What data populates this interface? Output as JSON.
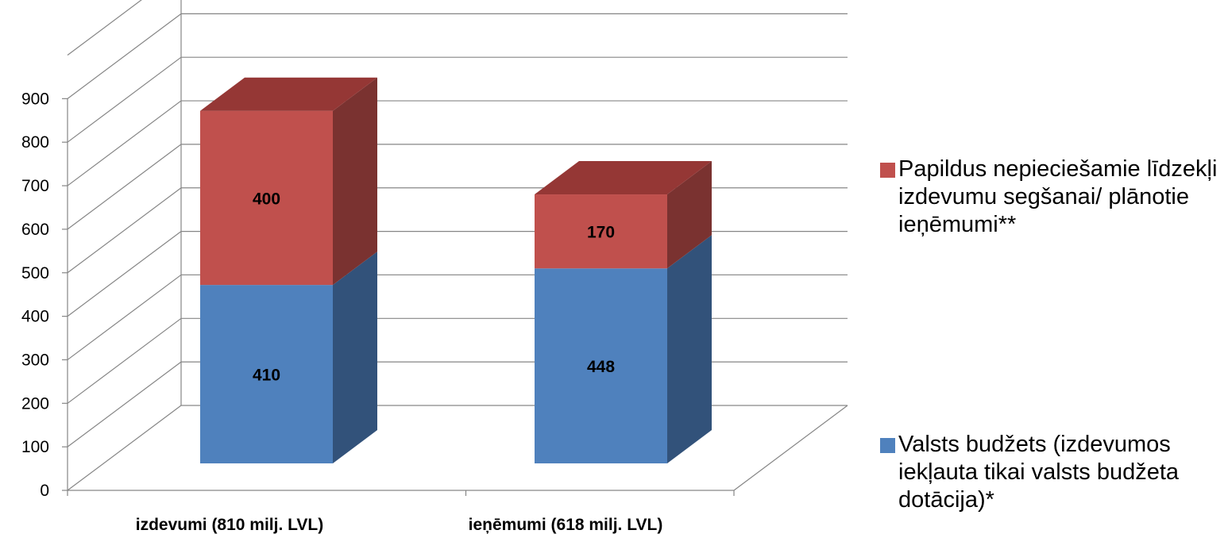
{
  "chart_data": {
    "type": "bar",
    "stacked": true,
    "style": "3d",
    "categories": [
      "izdevumi (810 milj. LVL)",
      "ieņēmumi (618 milj. LVL)"
    ],
    "series": [
      {
        "name": "Valsts budžets (izdevumos iekļauta tikai valsts budžeta dotācija)*",
        "values": [
          410,
          448
        ],
        "color": "#4F81BD",
        "side_color": "#32527A"
      },
      {
        "name": "Papildus nepieciešamie līdzekļi izdevumu segšanai/ plānotie ieņēmumi**",
        "values": [
          400,
          170
        ],
        "color": "#C0504D",
        "side_color": "#7A3230"
      }
    ],
    "ylim": [
      0,
      1000
    ],
    "yticks": [
      "0",
      "100",
      "200",
      "300",
      "400",
      "500",
      "600",
      "700",
      "800",
      "900"
    ],
    "grid": true,
    "legend_position": "right",
    "legend_order": [
      1,
      0
    ],
    "data_labels": true
  }
}
